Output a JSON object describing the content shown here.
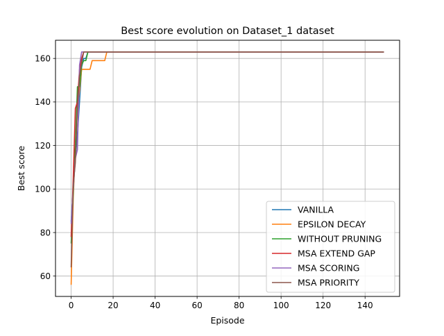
{
  "chart_data": {
    "type": "line",
    "title": "Best score evolution on Dataset_1 dataset",
    "xlabel": "Episode",
    "ylabel": "Best score",
    "xlim": [
      -7.45,
      156.45
    ],
    "ylim": [
      50.65,
      168.35
    ],
    "xticks": [
      0,
      20,
      40,
      60,
      80,
      100,
      120,
      140
    ],
    "yticks": [
      60,
      80,
      100,
      120,
      140,
      160
    ],
    "grid": true,
    "legend_position": "lower-right",
    "series": [
      {
        "name": "VANILLA",
        "color": "#1f77b4",
        "x": [
          0,
          1,
          2,
          3,
          4,
          5,
          6,
          7,
          8,
          9,
          149
        ],
        "y": [
          85,
          100,
          114,
          125,
          140,
          156,
          160,
          160,
          163,
          163,
          163
        ]
      },
      {
        "name": "EPSILON DECAY",
        "color": "#ff7f0e",
        "x": [
          0,
          1,
          2,
          3,
          4,
          5,
          6,
          7,
          8,
          9,
          10,
          11,
          12,
          13,
          14,
          15,
          16,
          17,
          149
        ],
        "y": [
          56,
          96,
          118,
          137,
          145,
          155,
          155,
          155,
          155,
          155,
          159,
          159,
          159,
          159,
          159,
          159,
          159,
          163,
          163
        ]
      },
      {
        "name": "WITHOUT PRUNING",
        "color": "#2ca02c",
        "x": [
          0,
          1,
          2,
          3,
          4,
          5,
          6,
          7,
          8,
          9,
          149
        ],
        "y": [
          75,
          98,
          120,
          147,
          147,
          157,
          159,
          159,
          163,
          163,
          163
        ]
      },
      {
        "name": "MSA EXTEND GAP",
        "color": "#d62728",
        "x": [
          0,
          1,
          2,
          3,
          4,
          5,
          6,
          149
        ],
        "y": [
          78,
          105,
          137,
          140,
          155,
          160,
          163,
          163
        ]
      },
      {
        "name": "MSA SCORING",
        "color": "#9467bd",
        "x": [
          0,
          1,
          2,
          3,
          4,
          5,
          6,
          149
        ],
        "y": [
          84,
          100,
          114,
          118,
          157,
          163,
          163,
          163
        ]
      },
      {
        "name": "MSA PRIORITY",
        "color": "#8c564b",
        "x": [
          0,
          1,
          2,
          3,
          4,
          5,
          6,
          149
        ],
        "y": [
          64,
          102,
          112,
          138,
          152,
          158,
          163,
          163
        ]
      }
    ]
  }
}
